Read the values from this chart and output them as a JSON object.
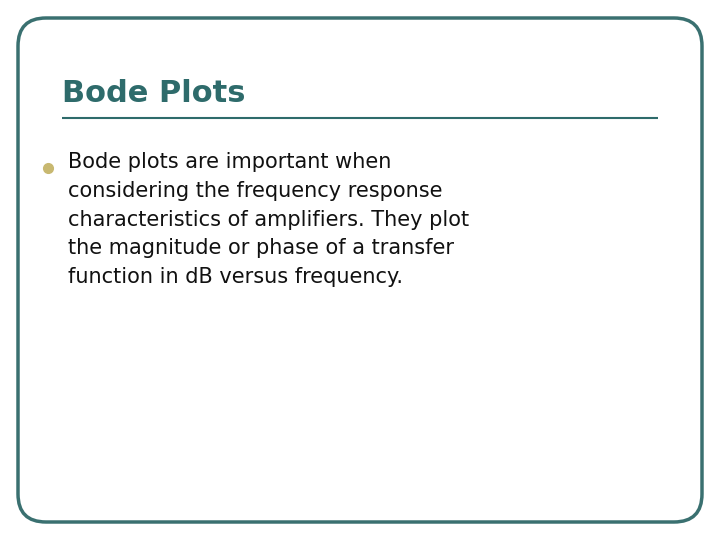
{
  "title": "Bode Plots",
  "title_color": "#2E6B6B",
  "title_fontsize": 22,
  "border_color": "#3A7070",
  "border_linewidth": 2.5,
  "separator_color": "#2E6B6B",
  "separator_linewidth": 1.5,
  "bullet_color": "#C8B870",
  "bullet_size": 7,
  "body_text": "Bode plots are important when\nconsidering the frequency response\ncharacteristics of amplifiers. They plot\nthe magnitude or phase of a transfer\nfunction in dB versus frequency.",
  "body_fontsize": 15,
  "body_color": "#111111",
  "background_color": "#FFFFFF"
}
